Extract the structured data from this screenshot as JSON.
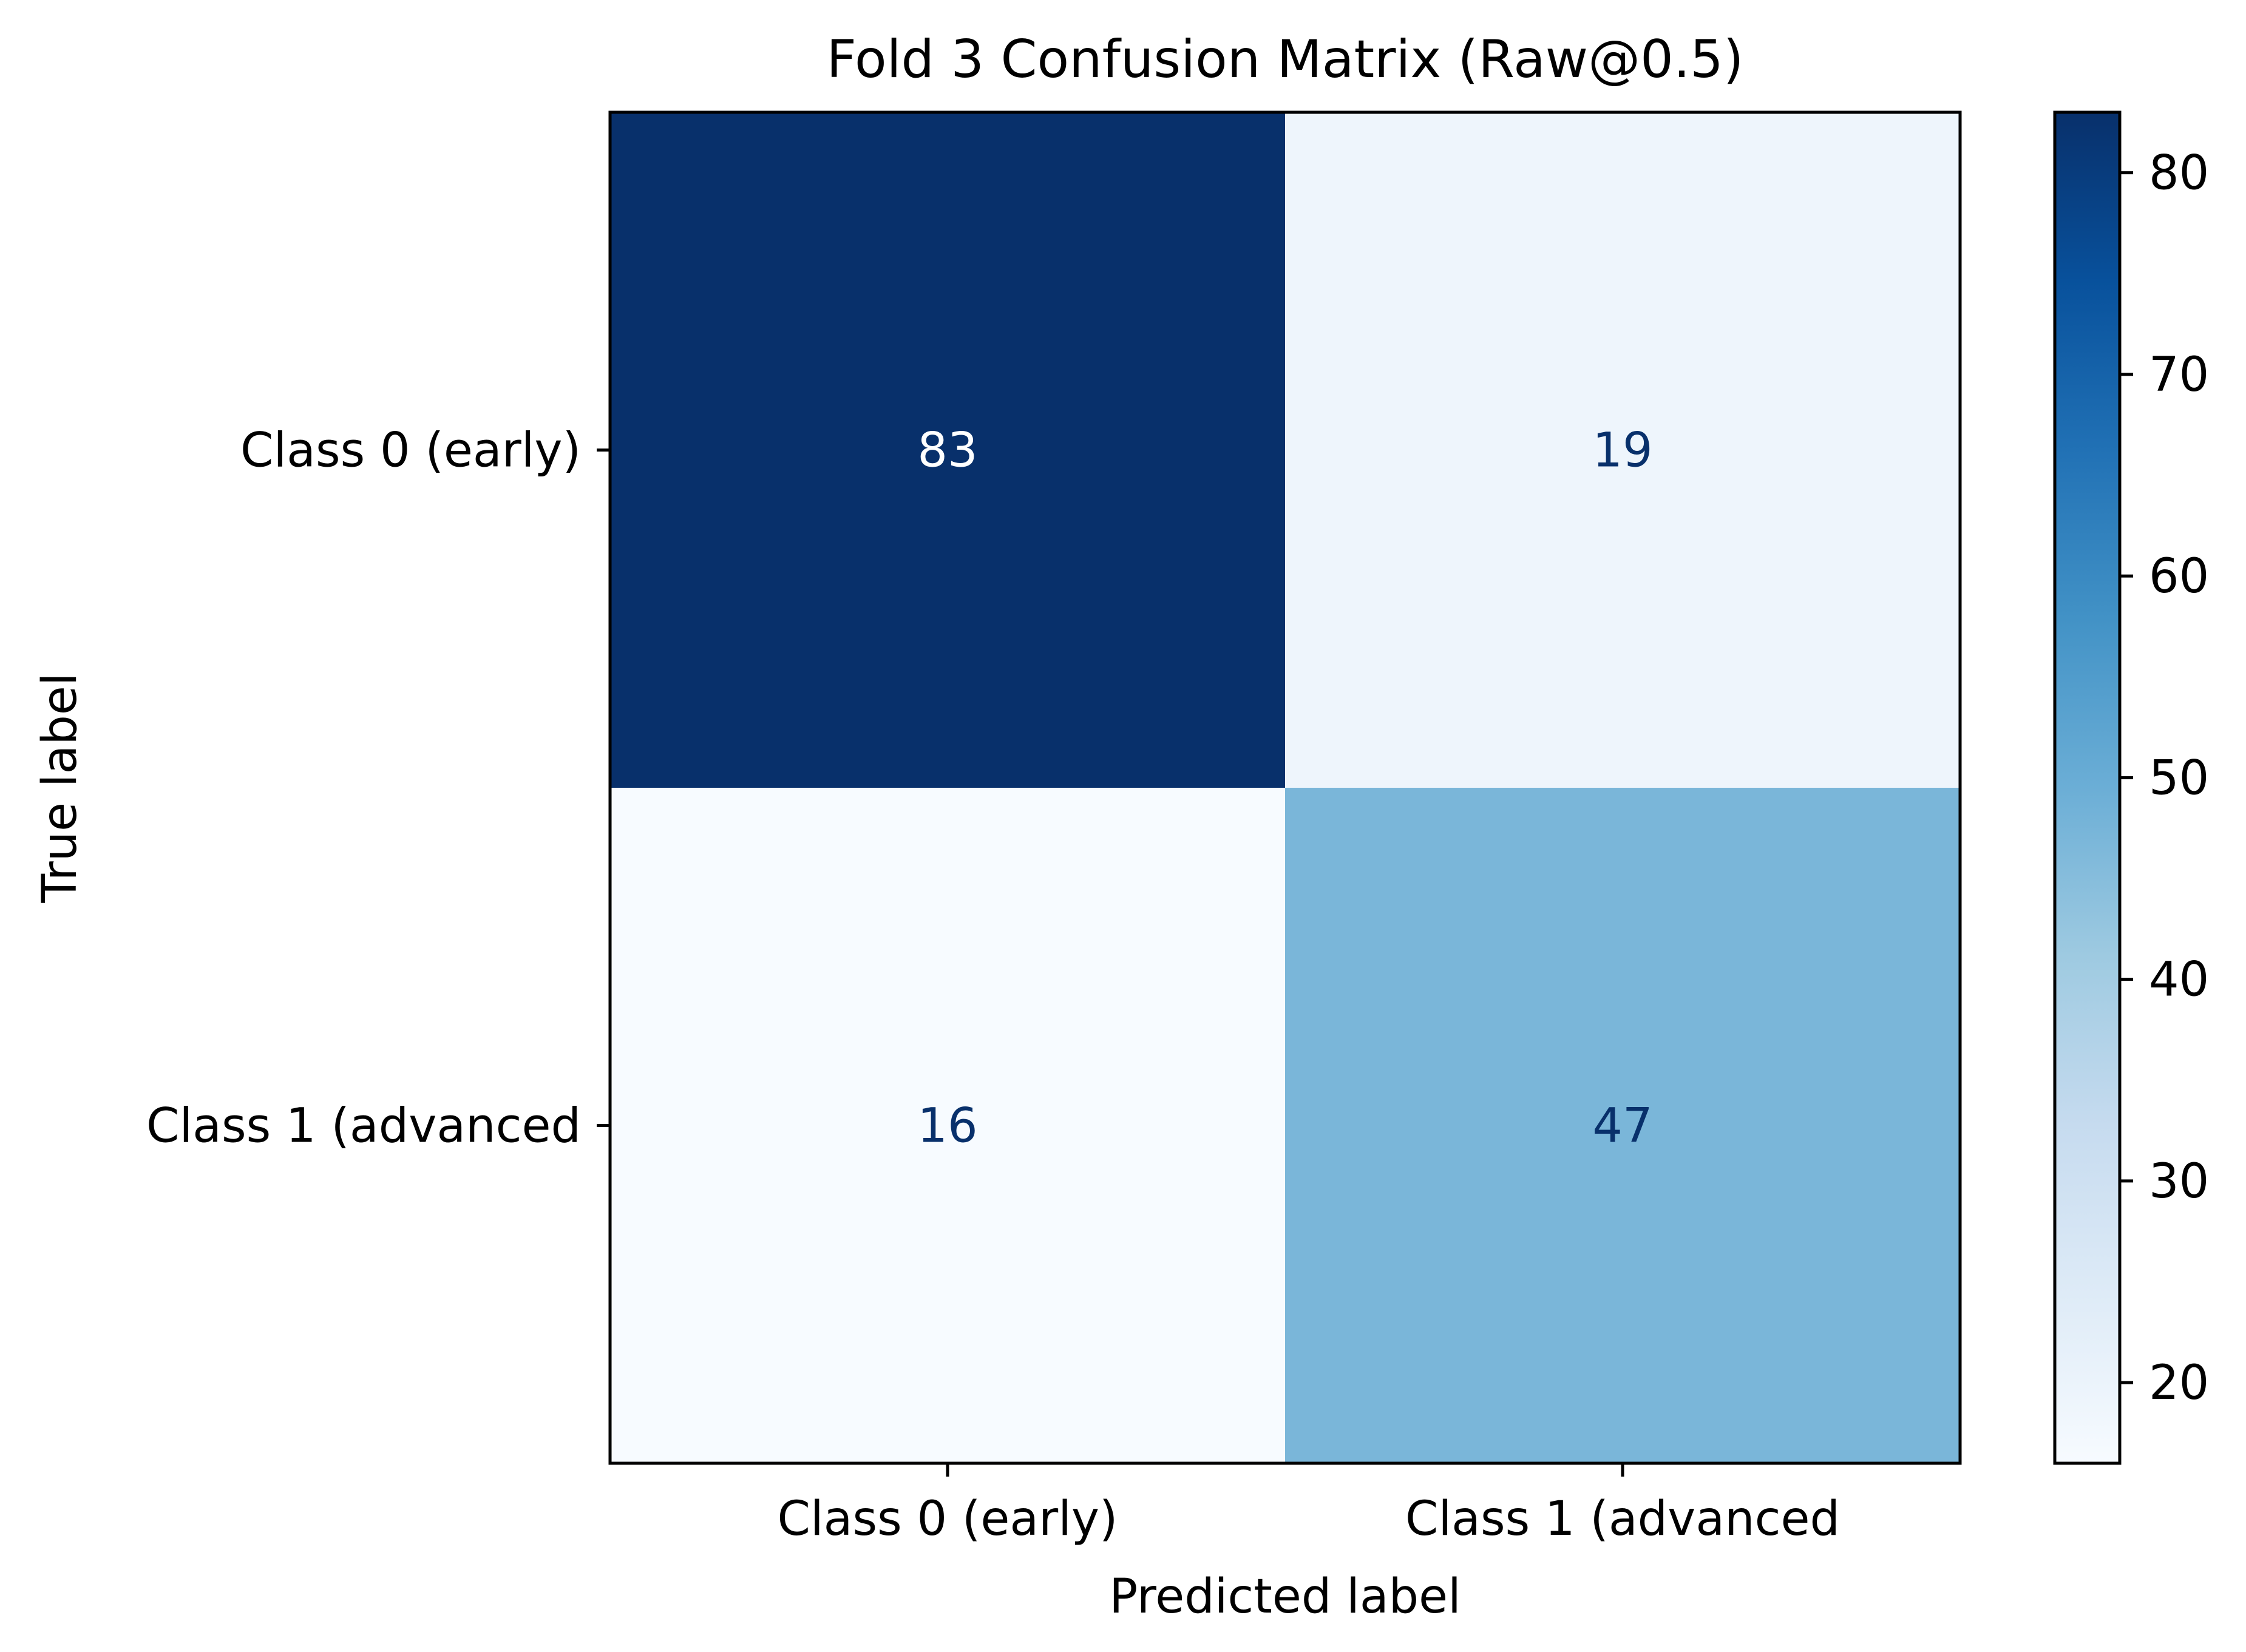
{
  "chart_data": {
    "type": "heatmap",
    "title": "Fold 3 Confusion Matrix (Raw@0.5)",
    "xlabel": "Predicted label",
    "ylabel": "True label",
    "x_categories": [
      "Class 0 (early)",
      "Class 1 (advanced"
    ],
    "y_categories": [
      "Class 0 (early)",
      "Class 1 (advanced"
    ],
    "values": [
      [
        83,
        19
      ],
      [
        16,
        47
      ]
    ],
    "colormap": "Blues",
    "colorbar": {
      "vmin": 16,
      "vmax": 83,
      "ticks": [
        20,
        30,
        40,
        50,
        60,
        70,
        80
      ]
    },
    "text_colors": {
      "on_dark": "#ffffff",
      "on_light": "#08306b"
    },
    "grid": false
  }
}
